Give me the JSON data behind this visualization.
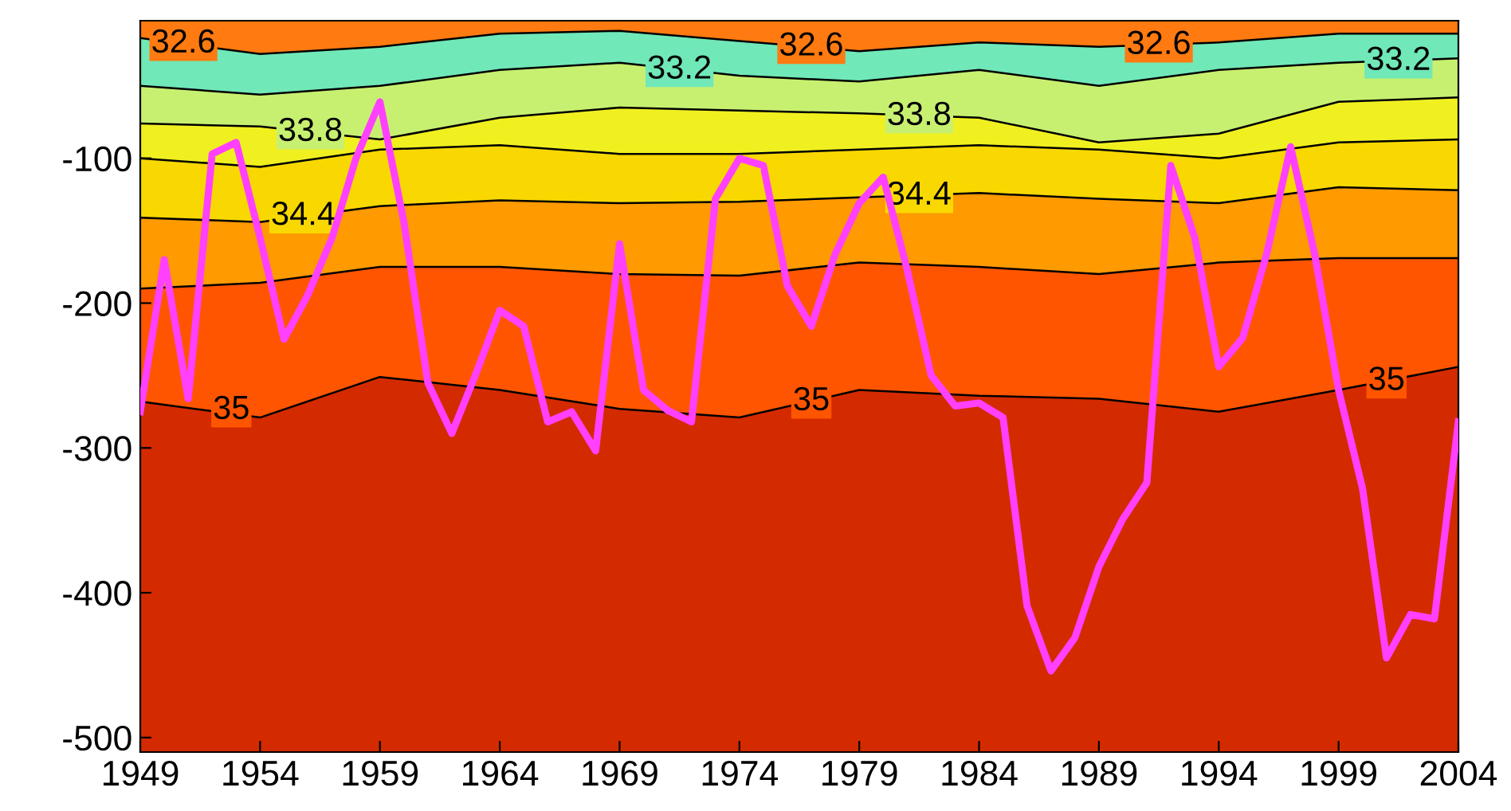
{
  "chart_data": {
    "type": "line",
    "xlim": [
      1949,
      2004
    ],
    "xticks": [
      1949,
      1954,
      1959,
      1964,
      1969,
      1974,
      1979,
      1984,
      1989,
      1994,
      1999,
      2004
    ],
    "ylim": [
      -510,
      -5
    ],
    "yticks": [
      -500,
      -400,
      -300,
      -200,
      -100
    ],
    "grid": false,
    "bands": [
      {
        "axis": "y",
        "from": -510,
        "to": -5,
        "color": "#d42a00"
      }
    ],
    "series": [
      {
        "type": "area",
        "color": "#ff7a10",
        "x": [
          1949,
          1954,
          1959,
          1964,
          1969,
          1974,
          1979,
          1984,
          1989,
          1994,
          1999,
          2004
        ],
        "values": [
          -17,
          -28,
          -23,
          -14,
          -12,
          -19,
          -26,
          -20,
          -23,
          -20,
          -14,
          -14
        ]
      },
      {
        "type": "area",
        "color": "#70e8b8",
        "x": [
          1949,
          1954,
          1959,
          1964,
          1969,
          1974,
          1979,
          1984,
          1989,
          1994,
          1999,
          2004
        ],
        "values": [
          -50,
          -56,
          -50,
          -39,
          -34,
          -43,
          -47,
          -39,
          -50,
          -39,
          -34,
          -31
        ]
      },
      {
        "type": "area",
        "color": "#c8f070",
        "x": [
          1949,
          1954,
          1959,
          1964,
          1969,
          1974,
          1979,
          1984,
          1989,
          1994,
          1999,
          2004
        ],
        "values": [
          -76,
          -78,
          -87,
          -72,
          -65,
          -67,
          -69,
          -72,
          -89,
          -83,
          -61,
          -58
        ]
      },
      {
        "type": "area",
        "color": "#f0f020",
        "x": [
          1949,
          1954,
          1959,
          1964,
          1969,
          1974,
          1979,
          1984,
          1989,
          1994,
          1999,
          2004
        ],
        "values": [
          -100,
          -106,
          -94,
          -91,
          -97,
          -97,
          -94,
          -91,
          -94,
          -100,
          -89,
          -87
        ]
      },
      {
        "type": "area",
        "color": "#f8d800",
        "x": [
          1949,
          1954,
          1959,
          1964,
          1969,
          1974,
          1979,
          1984,
          1989,
          1994,
          1999,
          2004
        ],
        "values": [
          -141,
          -144,
          -133,
          -129,
          -131,
          -130,
          -127,
          -124,
          -128,
          -131,
          -120,
          -122
        ]
      },
      {
        "type": "area",
        "color": "#ff9a00",
        "x": [
          1949,
          1954,
          1959,
          1964,
          1969,
          1974,
          1979,
          1984,
          1989,
          1994,
          1999,
          2004
        ],
        "values": [
          -190,
          -186,
          -175,
          -175,
          -180,
          -181,
          -172,
          -175,
          -180,
          -172,
          -169,
          -169
        ]
      },
      {
        "type": "area",
        "color": "#ff5500",
        "x": [
          1949,
          1954,
          1959,
          1964,
          1969,
          1974,
          1979,
          1984,
          1989,
          1994,
          1999,
          2004
        ],
        "values": [
          -268,
          -279,
          -251,
          -260,
          -273,
          -279,
          -260,
          -264,
          -266,
          -275,
          -260,
          -244
        ]
      },
      {
        "color": "#ff40ff",
        "x": [
          1949,
          1950,
          1951,
          1952,
          1953,
          1954,
          1955,
          1956,
          1957,
          1958,
          1959,
          1960,
          1961,
          1962,
          1963,
          1964,
          1965,
          1966,
          1967,
          1968,
          1969,
          1970,
          1971,
          1972,
          1973,
          1974,
          1975,
          1976,
          1977,
          1978,
          1979,
          1980,
          1981,
          1982,
          1983,
          1984,
          1985,
          1986,
          1987,
          1988,
          1989,
          1990,
          1991,
          1992,
          1993,
          1994,
          1995,
          1996,
          1997,
          1998,
          1999,
          2000,
          2001,
          2002,
          2003,
          2004
        ],
        "values": [
          -275,
          -170,
          -266,
          -97,
          -89,
          -155,
          -225,
          -194,
          -155,
          -100,
          -61,
          -144,
          -255,
          -290,
          -249,
          -205,
          -216,
          -282,
          -275,
          -302,
          -159,
          -260,
          -274,
          -282,
          -128,
          -100,
          -105,
          -188,
          -216,
          -166,
          -131,
          -113,
          -177,
          -250,
          -271,
          -269,
          -279,
          -409,
          -454,
          -431,
          -382,
          -349,
          -324,
          -105,
          -155,
          -244,
          -224,
          -166,
          -92,
          -166,
          -260,
          -328,
          -445,
          -415,
          -418,
          -282
        ]
      }
    ],
    "annotations": [
      {
        "text": "32.6",
        "x": 1950.8,
        "y": -21
      },
      {
        "text": "32.6",
        "x": 1977,
        "y": -23
      },
      {
        "text": "32.6",
        "x": 1991.5,
        "y": -22
      },
      {
        "text": "33.2",
        "x": 1971.5,
        "y": -39
      },
      {
        "text": "33.2",
        "x": 2001.5,
        "y": -33
      },
      {
        "text": "33.8",
        "x": 1956.1,
        "y": -82
      },
      {
        "text": "33.8",
        "x": 1981.5,
        "y": -71
      },
      {
        "text": "34.4",
        "x": 1955.8,
        "y": -140
      },
      {
        "text": "34.4",
        "x": 1981.5,
        "y": -126
      },
      {
        "text": "35",
        "x": 1952.8,
        "y": -274
      },
      {
        "text": "35",
        "x": 1977,
        "y": -268
      },
      {
        "text": "35",
        "x": 2001,
        "y": -254
      }
    ]
  }
}
